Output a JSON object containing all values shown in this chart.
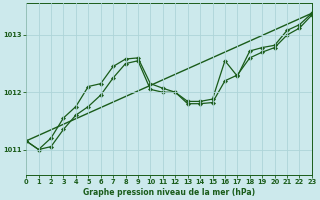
{
  "title": "Graphe pression niveau de la mer (hPa)",
  "background_color": "#cce9ec",
  "grid_color": "#aed4d8",
  "line_color": "#1a5c1a",
  "xlim": [
    0,
    23
  ],
  "ylim": [
    1010.55,
    1013.55
  ],
  "yticks": [
    1011,
    1012,
    1013
  ],
  "xticks": [
    0,
    1,
    2,
    3,
    4,
    5,
    6,
    7,
    8,
    9,
    10,
    11,
    12,
    13,
    14,
    15,
    16,
    17,
    18,
    19,
    20,
    21,
    22,
    23
  ],
  "series1_x": [
    0,
    1,
    2,
    3,
    4,
    5,
    6,
    7,
    8,
    9,
    10,
    11,
    12,
    13,
    14,
    15,
    16,
    17,
    18,
    19,
    20,
    21,
    22,
    23
  ],
  "series1_y": [
    1011.15,
    1011.0,
    1011.05,
    1011.35,
    1011.6,
    1011.75,
    1011.95,
    1012.25,
    1012.5,
    1012.55,
    1012.05,
    1012.0,
    1012.0,
    1011.8,
    1011.8,
    1011.82,
    1012.2,
    1012.3,
    1012.6,
    1012.7,
    1012.78,
    1013.0,
    1013.12,
    1013.35
  ],
  "series2_x": [
    0,
    1,
    2,
    3,
    4,
    5,
    6,
    7,
    8,
    9,
    10,
    11,
    12,
    13,
    14,
    15,
    16,
    17,
    18,
    19,
    20,
    21,
    22,
    23
  ],
  "series2_y": [
    1011.15,
    1011.0,
    1011.2,
    1011.55,
    1011.75,
    1012.1,
    1012.15,
    1012.45,
    1012.58,
    1012.6,
    1012.15,
    1012.07,
    1012.0,
    1011.84,
    1011.84,
    1011.88,
    1012.55,
    1012.28,
    1012.72,
    1012.78,
    1012.82,
    1013.08,
    1013.18,
    1013.38
  ]
}
